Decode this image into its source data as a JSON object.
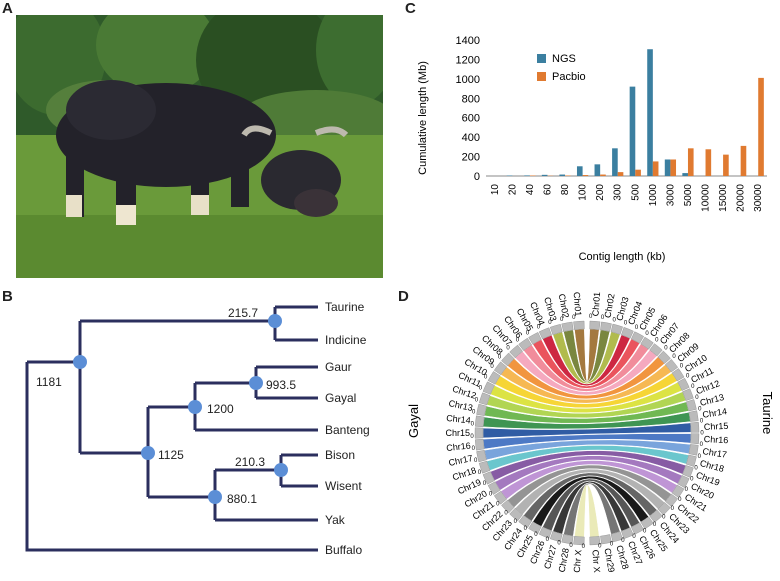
{
  "panels": {
    "a": "A",
    "b": "B",
    "c": "C",
    "d": "D"
  },
  "photo": {
    "subject": "gayal-photo",
    "colors": {
      "sky": "#cfe3c4",
      "forest": "#2f5a2a",
      "grass": "#6a9a3a",
      "animal": "#23222a"
    }
  },
  "chart_data": {
    "type": "bar",
    "categories": [
      "10",
      "20",
      "40",
      "60",
      "80",
      "100",
      "200",
      "300",
      "500",
      "1000",
      "3000",
      "5000",
      "10000",
      "15000",
      "20000",
      "30000"
    ],
    "series": [
      {
        "name": "NGS",
        "color": "#3b7fa0",
        "values": [
          0,
          5,
          6,
          12,
          15,
          100,
          120,
          285,
          920,
          1305,
          170,
          30,
          0,
          0,
          0,
          0
        ]
      },
      {
        "name": "Pacbio",
        "color": "#e07a30",
        "values": [
          0,
          0,
          5,
          3,
          5,
          10,
          15,
          40,
          65,
          150,
          170,
          285,
          275,
          220,
          310,
          1010
        ]
      }
    ],
    "xlabel": "Contig length (kb)",
    "ylabel": "Cumulative length (Mb)",
    "ylim": [
      0,
      1400
    ],
    "yticks": [
      "0",
      "200",
      "400",
      "600",
      "800",
      "1000",
      "1200",
      "1400"
    ],
    "legend_position": "top-left"
  },
  "tree": {
    "taxa": [
      "Taurine",
      "Indicine",
      "Gaur",
      "Gayal",
      "Banteng",
      "Bison",
      "Wisent",
      "Yak",
      "Buffalo"
    ],
    "node_labels": [
      "215.7",
      "1181",
      "993.5",
      "1200",
      "1125",
      "210.3",
      "880.1"
    ],
    "line_color": "#2b2f5e",
    "node_color": "#5b8ed6"
  },
  "circos": {
    "left_label": "Gayal",
    "right_label": "Taurine",
    "tick_zero": "0",
    "left_chroms": [
      "Chr01",
      "Chr02",
      "Chr03",
      "Chr04",
      "Chr05",
      "Chr06",
      "Chr07",
      "Chr08",
      "Chr09",
      "Chr10",
      "Chr11",
      "Chr12",
      "Chr13",
      "Chr14",
      "Chr15",
      "Chr16",
      "Chr17",
      "Chr18",
      "Chr19",
      "Chr20",
      "Chr21",
      "Chr22",
      "Chr23",
      "Chr24",
      "Chr25",
      "Chr26",
      "Chr27",
      "Chr28",
      "Chr X"
    ],
    "right_chroms": [
      "Chr01",
      "Chr02",
      "Chr03",
      "Chr04",
      "Chr05",
      "Chr06",
      "Chr07",
      "Chr08",
      "Chr09",
      "Chr10",
      "Chr11",
      "Chr12",
      "Chr13",
      "Chr14",
      "Chr15",
      "Chr16",
      "Chr17",
      "Chr18",
      "Chr19",
      "Chr20",
      "Chr21",
      "Chr22",
      "Chr23",
      "Chr24",
      "Chr25",
      "Chr26",
      "Chr27",
      "Chr28",
      "Chr29",
      "Chr X"
    ],
    "colors": [
      "#9a6a2a",
      "#6b7a2a",
      "#a8b43a",
      "#c8102e",
      "#e8414b",
      "#f08090",
      "#f4a0b8",
      "#f08a2a",
      "#f5b040",
      "#f5d020",
      "#d8e030",
      "#a8d040",
      "#60b040",
      "#2a8a40",
      "#1a4a9a",
      "#3a6abf",
      "#6a9ad8",
      "#5ac0c8",
      "#7a4a9a",
      "#9a6ab8",
      "#b88ad0",
      "#888888",
      "#aaaaaa",
      "#555555",
      "#000000",
      "#444444",
      "#222222",
      "#666666",
      "#e8e8b0"
    ]
  }
}
